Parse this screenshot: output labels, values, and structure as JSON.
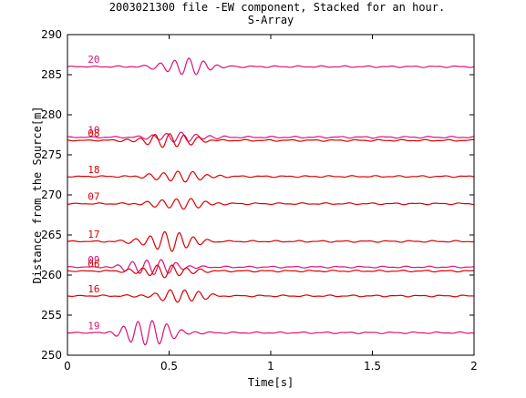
{
  "chart_data": {
    "type": "line",
    "title": "2003021300 file -EW component, Stacked for an hour.",
    "subtitle": "S-Array",
    "xlabel": "Time[s]",
    "ylabel": "Distance from the Source[m]",
    "xlim": [
      0,
      2
    ],
    "ylim": [
      250,
      290
    ],
    "xticks": [
      "0",
      "0.5",
      "1",
      "1.5",
      "2"
    ],
    "yticks": [
      "250",
      "255",
      "260",
      "265",
      "270",
      "275",
      "280",
      "285",
      "290"
    ],
    "grid": false,
    "label_time": 0.1,
    "series": [
      {
        "name": "20",
        "baseline": 286.0,
        "color": "#dd1177",
        "amplitude": 1.0,
        "center": 0.58,
        "freq": 14
      },
      {
        "name": "10",
        "baseline": 277.2,
        "color": "#dd1177",
        "amplitude": 0.6,
        "center": 0.55,
        "freq": 14
      },
      {
        "name": "08",
        "baseline": 276.8,
        "color": "#dd0000",
        "amplitude": 0.9,
        "center": 0.5,
        "freq": 14
      },
      {
        "name": "18",
        "baseline": 272.3,
        "color": "#dd0000",
        "amplitude": 0.7,
        "center": 0.55,
        "freq": 14
      },
      {
        "name": "07",
        "baseline": 268.9,
        "color": "#dd0000",
        "amplitude": 0.7,
        "center": 0.55,
        "freq": 14
      },
      {
        "name": "17",
        "baseline": 264.2,
        "color": "#dd0000",
        "amplitude": 1.2,
        "center": 0.5,
        "freq": 14
      },
      {
        "name": "09",
        "baseline": 261.0,
        "color": "#dd1177",
        "amplitude": 1.0,
        "center": 0.42,
        "freq": 14
      },
      {
        "name": "06",
        "baseline": 260.5,
        "color": "#dd0000",
        "amplitude": 0.8,
        "center": 0.48,
        "freq": 14
      },
      {
        "name": "16",
        "baseline": 257.4,
        "color": "#dd0000",
        "amplitude": 0.8,
        "center": 0.55,
        "freq": 14
      },
      {
        "name": "19",
        "baseline": 252.8,
        "color": "#dd1177",
        "amplitude": 1.6,
        "center": 0.4,
        "freq": 14
      }
    ]
  }
}
